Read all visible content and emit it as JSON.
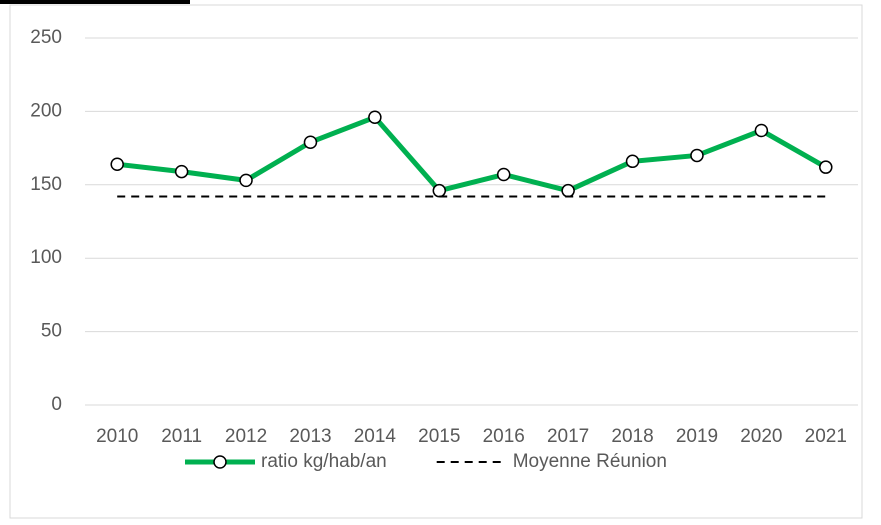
{
  "chart_data": {
    "type": "line",
    "categories": [
      "2010",
      "2011",
      "2012",
      "2013",
      "2014",
      "2015",
      "2016",
      "2017",
      "2018",
      "2019",
      "2020",
      "2021"
    ],
    "series": [
      {
        "name": "ratio kg/hab/an",
        "color": "#00b050",
        "marker": "circle",
        "values": [
          164,
          159,
          153,
          179,
          196,
          146,
          157,
          146,
          166,
          170,
          187,
          162
        ]
      },
      {
        "name": "Moyenne Réunion",
        "color": "#000000",
        "dash": "dashed",
        "values": [
          142,
          142,
          142,
          142,
          142,
          142,
          142,
          142,
          142,
          142,
          142,
          142
        ]
      }
    ],
    "ylim": [
      0,
      250
    ],
    "yticks": [
      0,
      50,
      100,
      150,
      200,
      250
    ],
    "grid": true,
    "legend": "bottom"
  }
}
